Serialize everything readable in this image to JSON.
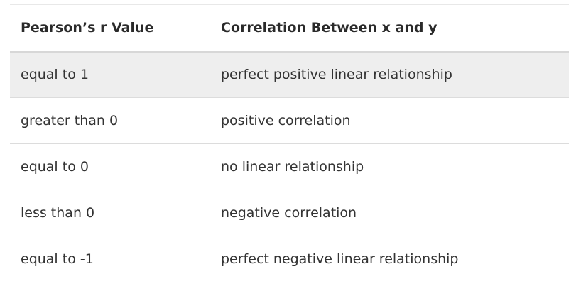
{
  "table": {
    "headers": [
      "Pearson’s r Value",
      "Correlation Between x and y"
    ],
    "rows": [
      [
        "equal to 1",
        "perfect positive linear relationship"
      ],
      [
        "greater than 0",
        "positive correlation"
      ],
      [
        "equal to 0",
        "no linear relationship"
      ],
      [
        "less than 0",
        "negative correlation"
      ],
      [
        "equal to -1",
        "perfect negative linear relationship"
      ]
    ],
    "shaded_row_color": "#eeeeee"
  }
}
